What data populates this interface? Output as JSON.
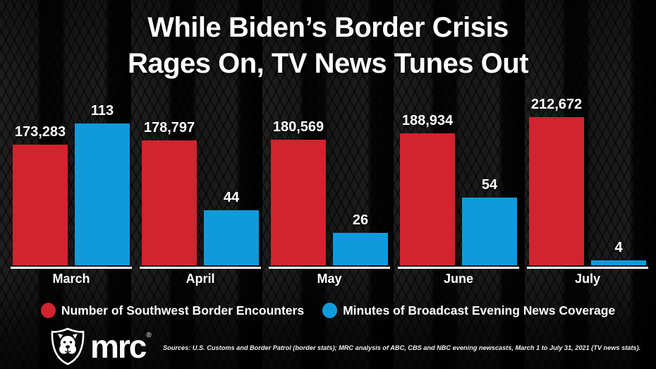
{
  "title": {
    "line1": "While Biden’s Border Crisis",
    "line2": "Rages On, TV News Tunes Out"
  },
  "chart_data": {
    "type": "bar",
    "title": "While Biden’s Border Crisis Rages On, TV News Tunes Out",
    "categories": [
      "March",
      "April",
      "May",
      "June",
      "July"
    ],
    "series": [
      {
        "name": "Number of Southwest Border Encounters",
        "color": "#d2232e",
        "values": [
          173283,
          178797,
          180569,
          188934,
          212672
        ]
      },
      {
        "name": "Minutes of Broadcast Evening News Coverage",
        "color": "#0f9bdb",
        "values": [
          113,
          44,
          26,
          54,
          4
        ]
      }
    ],
    "xlabel": "",
    "ylabel": "",
    "axes": {
      "encounters_range": [
        0,
        212672
      ],
      "minutes_range": [
        0,
        113
      ],
      "dual_independent_scales": true
    },
    "grid": false,
    "legend_position": "bottom",
    "value_labels": "above-bars"
  },
  "legend": {
    "items": [
      {
        "label": "Number of Southwest Border Encounters",
        "color": "#d2232e"
      },
      {
        "label": "Minutes of Broadcast Evening News Coverage",
        "color": "#0f9bdb"
      }
    ]
  },
  "footer": {
    "brand": "mrc",
    "trademark": "®",
    "sources": "Sources: U.S. Customs and Border Patrol (border stats); MRC analysis of ABC, CBS and NBC evening newscasts, March 1 to July 31, 2021 (TV news stats)."
  },
  "colors": {
    "encounters_red": "#d2232e",
    "minutes_blue": "#0f9bdb",
    "text_white": "#ffffff",
    "background_black": "#0a0a0a"
  }
}
